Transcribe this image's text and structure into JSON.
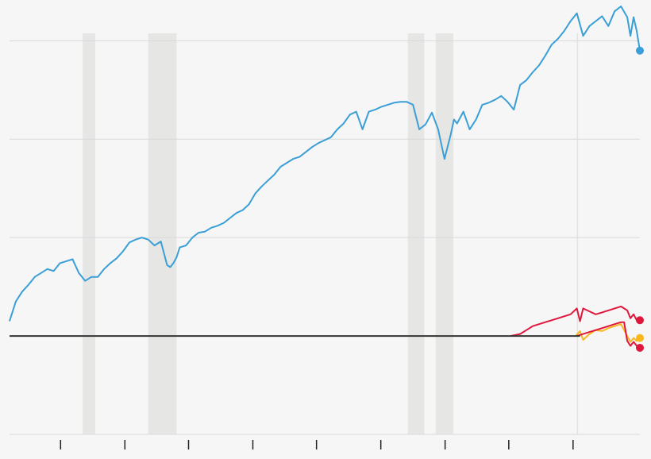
{
  "chart_data": {
    "type": "line",
    "title": "",
    "xlabel": "",
    "ylabel": "",
    "xlim": [
      0,
      100
    ],
    "ylim": [
      -1,
      3.35
    ],
    "grid": true,
    "legend": "none",
    "yticks": [
      -1,
      0,
      1,
      2,
      3
    ],
    "xticks": [
      8.1,
      18.3,
      28.4,
      38.6,
      48.7,
      58.9,
      69.1,
      79.2,
      89.4
    ],
    "shaded_ranges": [
      [
        11.6,
        13.6
      ],
      [
        22.0,
        26.5
      ],
      [
        63.2,
        65.8
      ],
      [
        67.6,
        70.4
      ]
    ],
    "reference_vline": 90.1,
    "baseline": 0,
    "colors": {
      "background": "#f6f6f6",
      "grid": "#d9d9d9",
      "shade": "#e6e6e4",
      "baseline": "#333333",
      "blue": "#3a9fd6",
      "red": "#e0173d",
      "orange": "#f7b71d"
    },
    "series": [
      {
        "color": "#3a9fd6",
        "x": [
          0,
          1,
          2,
          3,
          4,
          5,
          6,
          7,
          8,
          9,
          10,
          11,
          12,
          12.5,
          13,
          14,
          15,
          16,
          17,
          18,
          19,
          20,
          21,
          22,
          23,
          24,
          25,
          25.5,
          26,
          26.5,
          27,
          28,
          29,
          30,
          31,
          32,
          33,
          34,
          35,
          36,
          37,
          38,
          39,
          40,
          41,
          42,
          43,
          44,
          45,
          46,
          47,
          48,
          49,
          50,
          51,
          52,
          53,
          54,
          55,
          56,
          57,
          58,
          59,
          60,
          61,
          62,
          63,
          64,
          65,
          66,
          67,
          68,
          69,
          70,
          70.5,
          71,
          72,
          73,
          74,
          75,
          76,
          77,
          78,
          79,
          80,
          81,
          82,
          83,
          84,
          85,
          86,
          87,
          88,
          89,
          90,
          91,
          92,
          93,
          94,
          95,
          96,
          97,
          98,
          98.5,
          99,
          99.5,
          100
        ],
        "y": [
          0.15,
          0.35,
          0.45,
          0.52,
          0.6,
          0.64,
          0.68,
          0.66,
          0.74,
          0.76,
          0.78,
          0.64,
          0.56,
          0.58,
          0.6,
          0.6,
          0.68,
          0.74,
          0.79,
          0.86,
          0.95,
          0.98,
          1.0,
          0.98,
          0.92,
          0.96,
          0.72,
          0.7,
          0.74,
          0.8,
          0.9,
          0.92,
          1.0,
          1.05,
          1.06,
          1.1,
          1.12,
          1.15,
          1.2,
          1.25,
          1.28,
          1.34,
          1.45,
          1.52,
          1.58,
          1.64,
          1.72,
          1.76,
          1.8,
          1.82,
          1.87,
          1.92,
          1.96,
          1.99,
          2.02,
          2.1,
          2.16,
          2.25,
          2.28,
          2.1,
          2.28,
          2.3,
          2.33,
          2.35,
          2.37,
          2.38,
          2.38,
          2.35,
          2.1,
          2.15,
          2.27,
          2.1,
          1.8,
          2.05,
          2.2,
          2.16,
          2.28,
          2.1,
          2.2,
          2.35,
          2.37,
          2.4,
          2.44,
          2.38,
          2.3,
          2.55,
          2.6,
          2.68,
          2.75,
          2.85,
          2.96,
          3.02,
          3.1,
          3.2,
          3.28,
          3.05,
          3.15,
          3.2,
          3.25,
          3.15,
          3.3,
          3.35,
          3.24,
          3.05,
          3.24,
          3.1,
          2.9
        ]
      },
      {
        "color": "#e0173d",
        "x": [
          79.5,
          81,
          82,
          83,
          84,
          85,
          86,
          87,
          88,
          89,
          90,
          90.5,
          91,
          92,
          93,
          94,
          95,
          96,
          97,
          98,
          98.5,
          99,
          99.5,
          100
        ],
        "y": [
          0.0,
          0.02,
          0.06,
          0.1,
          0.12,
          0.14,
          0.16,
          0.18,
          0.2,
          0.22,
          0.28,
          0.15,
          0.28,
          0.25,
          0.22,
          0.24,
          0.26,
          0.28,
          0.3,
          0.26,
          0.18,
          0.22,
          0.16,
          0.16
        ]
      },
      {
        "color": "#f7b71d",
        "x": [
          89.8,
          90.5,
          91,
          92,
          93,
          94,
          95,
          96,
          97,
          98,
          98.5,
          99,
          99.5,
          100
        ],
        "y": [
          0.0,
          0.05,
          -0.04,
          0.02,
          0.06,
          0.05,
          0.08,
          0.1,
          0.12,
          0.0,
          -0.06,
          -0.02,
          -0.05,
          -0.02
        ]
      },
      {
        "color": "#e0173d",
        "x": [
          90,
          91,
          92,
          93,
          94,
          95,
          96,
          97,
          97.5,
          98,
          98.5,
          99,
          99.5,
          100
        ],
        "y": [
          0.0,
          0.02,
          0.04,
          0.06,
          0.08,
          0.1,
          0.12,
          0.14,
          0.14,
          -0.05,
          -0.1,
          -0.06,
          -0.1,
          -0.12
        ]
      }
    ]
  }
}
